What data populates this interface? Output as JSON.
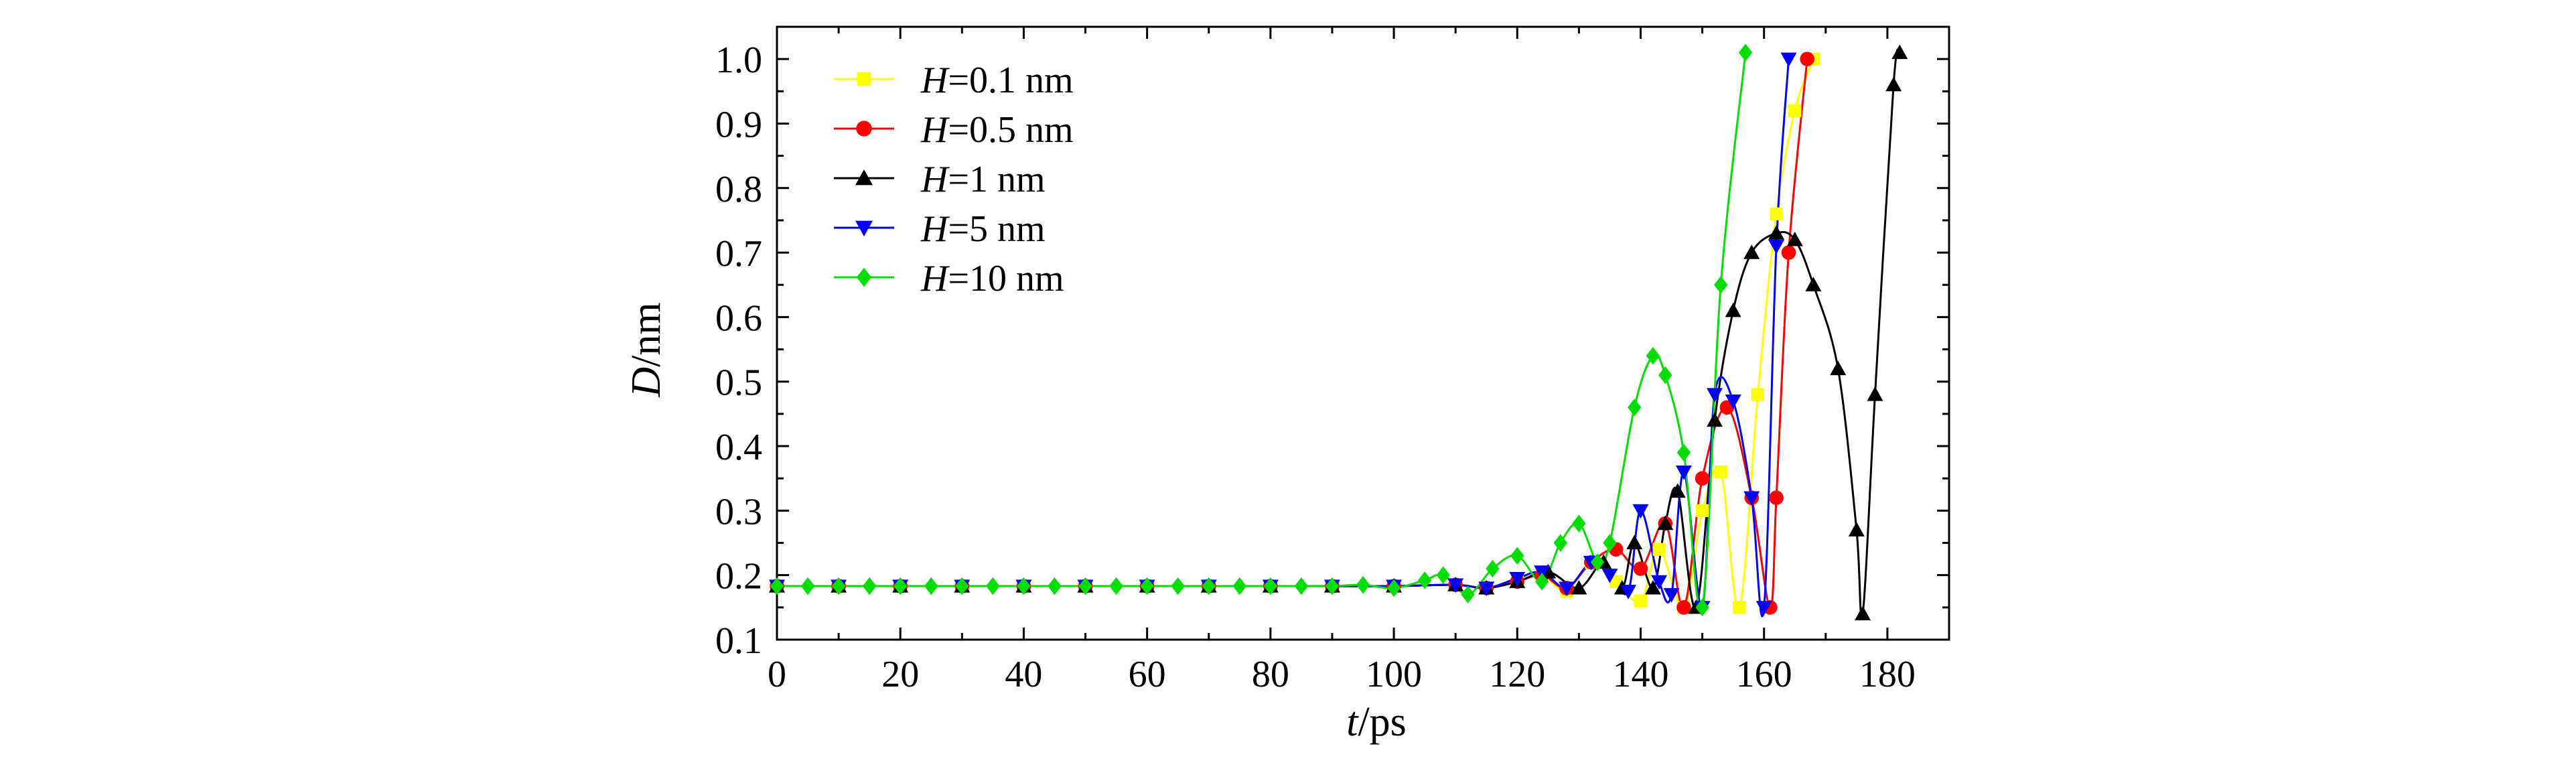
{
  "chart_data": {
    "type": "line",
    "xlabel": {
      "var": "t",
      "unit": "/ps"
    },
    "ylabel": {
      "var": "D",
      "unit": "/nm"
    },
    "xlim": [
      0,
      190
    ],
    "ylim": [
      0.1,
      1.05
    ],
    "x_ticks": [
      0,
      20,
      40,
      60,
      80,
      100,
      120,
      140,
      160,
      180
    ],
    "x_tick_labels": [
      "0",
      "20",
      "40",
      "60",
      "80",
      "100",
      "120",
      "140",
      "160",
      "180"
    ],
    "y_ticks": [
      0.1,
      0.2,
      0.3,
      0.4,
      0.5,
      0.6,
      0.7,
      0.8,
      0.9,
      1.0
    ],
    "y_tick_labels": [
      "0.1",
      "0.2",
      "0.3",
      "0.4",
      "0.5",
      "0.6",
      "0.7",
      "0.8",
      "0.9",
      "1.0"
    ],
    "grid": false,
    "legend_position": "top-left",
    "series": [
      {
        "name": "H=0.1 nm",
        "label_var": "H",
        "label_rest": "=0.1 nm",
        "color": "#ffff00",
        "marker": "square",
        "points": [
          [
            0,
            0.183
          ],
          [
            10,
            0.183
          ],
          [
            20,
            0.183
          ],
          [
            30,
            0.183
          ],
          [
            40,
            0.183
          ],
          [
            50,
            0.183
          ],
          [
            60,
            0.183
          ],
          [
            70,
            0.183
          ],
          [
            80,
            0.183
          ],
          [
            90,
            0.183
          ],
          [
            100,
            0.183
          ],
          [
            110,
            0.185
          ],
          [
            115,
            0.18
          ],
          [
            120,
            0.19
          ],
          [
            124,
            0.2
          ],
          [
            128,
            0.175
          ],
          [
            132,
            0.22
          ],
          [
            136,
            0.19
          ],
          [
            140,
            0.16
          ],
          [
            143,
            0.24
          ],
          [
            147,
            0.15
          ],
          [
            150,
            0.3
          ],
          [
            153,
            0.36
          ],
          [
            156,
            0.15
          ],
          [
            159,
            0.48
          ],
          [
            162,
            0.76
          ],
          [
            165,
            0.92
          ],
          [
            168,
            1.0
          ]
        ]
      },
      {
        "name": "H=0.5 nm",
        "label_var": "H",
        "label_rest": "=0.5 nm",
        "color": "#ff0000",
        "marker": "circle",
        "points": [
          [
            0,
            0.183
          ],
          [
            10,
            0.183
          ],
          [
            20,
            0.183
          ],
          [
            30,
            0.183
          ],
          [
            40,
            0.183
          ],
          [
            50,
            0.183
          ],
          [
            60,
            0.183
          ],
          [
            70,
            0.183
          ],
          [
            80,
            0.183
          ],
          [
            90,
            0.183
          ],
          [
            100,
            0.183
          ],
          [
            110,
            0.185
          ],
          [
            115,
            0.18
          ],
          [
            120,
            0.19
          ],
          [
            124,
            0.2
          ],
          [
            128,
            0.18
          ],
          [
            132,
            0.22
          ],
          [
            136,
            0.24
          ],
          [
            140,
            0.21
          ],
          [
            144,
            0.28
          ],
          [
            147,
            0.15
          ],
          [
            150,
            0.35
          ],
          [
            154,
            0.46
          ],
          [
            158,
            0.32
          ],
          [
            161,
            0.15
          ],
          [
            162,
            0.32
          ],
          [
            164,
            0.7
          ],
          [
            167,
            1.0
          ]
        ]
      },
      {
        "name": "H=1 nm",
        "label_var": "H",
        "label_rest": "=1 nm",
        "color": "#000000",
        "marker": "triangle-up",
        "points": [
          [
            0,
            0.183
          ],
          [
            10,
            0.183
          ],
          [
            20,
            0.183
          ],
          [
            30,
            0.183
          ],
          [
            40,
            0.183
          ],
          [
            50,
            0.183
          ],
          [
            60,
            0.183
          ],
          [
            70,
            0.183
          ],
          [
            80,
            0.183
          ],
          [
            90,
            0.183
          ],
          [
            100,
            0.183
          ],
          [
            110,
            0.185
          ],
          [
            115,
            0.18
          ],
          [
            120,
            0.19
          ],
          [
            125,
            0.205
          ],
          [
            130,
            0.18
          ],
          [
            134,
            0.22
          ],
          [
            137,
            0.18
          ],
          [
            139,
            0.25
          ],
          [
            142,
            0.18
          ],
          [
            144,
            0.28
          ],
          [
            146,
            0.33
          ],
          [
            149,
            0.15
          ],
          [
            152,
            0.44
          ],
          [
            155,
            0.61
          ],
          [
            158,
            0.7
          ],
          [
            162,
            0.73
          ],
          [
            165,
            0.72
          ],
          [
            168,
            0.65
          ],
          [
            172,
            0.52
          ],
          [
            175,
            0.27
          ],
          [
            176,
            0.14
          ],
          [
            178,
            0.48
          ],
          [
            181,
            0.96
          ],
          [
            182,
            1.01
          ]
        ]
      },
      {
        "name": "H=5 nm",
        "label_var": "H",
        "label_rest": "=5 nm",
        "color": "#0000ff",
        "marker": "triangle-down",
        "points": [
          [
            0,
            0.183
          ],
          [
            10,
            0.183
          ],
          [
            20,
            0.183
          ],
          [
            30,
            0.183
          ],
          [
            40,
            0.183
          ],
          [
            50,
            0.183
          ],
          [
            60,
            0.183
          ],
          [
            70,
            0.183
          ],
          [
            80,
            0.183
          ],
          [
            90,
            0.183
          ],
          [
            100,
            0.183
          ],
          [
            110,
            0.185
          ],
          [
            115,
            0.18
          ],
          [
            120,
            0.195
          ],
          [
            124,
            0.205
          ],
          [
            128,
            0.18
          ],
          [
            132,
            0.22
          ],
          [
            135,
            0.2
          ],
          [
            138,
            0.175
          ],
          [
            140,
            0.3
          ],
          [
            143,
            0.19
          ],
          [
            145,
            0.17
          ],
          [
            147,
            0.36
          ],
          [
            150,
            0.15
          ],
          [
            152,
            0.48
          ],
          [
            155,
            0.47
          ],
          [
            158,
            0.32
          ],
          [
            160,
            0.15
          ],
          [
            162,
            0.71
          ],
          [
            164,
            1.0
          ]
        ]
      },
      {
        "name": "H=10 nm",
        "label_var": "H",
        "label_rest": "=10 nm",
        "color": "#00dd00",
        "marker": "diamond",
        "points": [
          [
            0,
            0.183
          ],
          [
            5,
            0.183
          ],
          [
            10,
            0.183
          ],
          [
            15,
            0.183
          ],
          [
            20,
            0.183
          ],
          [
            25,
            0.183
          ],
          [
            30,
            0.183
          ],
          [
            35,
            0.183
          ],
          [
            40,
            0.183
          ],
          [
            45,
            0.183
          ],
          [
            50,
            0.183
          ],
          [
            55,
            0.183
          ],
          [
            60,
            0.183
          ],
          [
            65,
            0.183
          ],
          [
            70,
            0.183
          ],
          [
            75,
            0.183
          ],
          [
            80,
            0.183
          ],
          [
            85,
            0.183
          ],
          [
            90,
            0.183
          ],
          [
            95,
            0.185
          ],
          [
            100,
            0.18
          ],
          [
            105,
            0.192
          ],
          [
            108,
            0.2
          ],
          [
            112,
            0.17
          ],
          [
            116,
            0.21
          ],
          [
            120,
            0.23
          ],
          [
            124,
            0.19
          ],
          [
            127,
            0.25
          ],
          [
            130,
            0.28
          ],
          [
            133,
            0.22
          ],
          [
            135,
            0.25
          ],
          [
            139,
            0.46
          ],
          [
            142,
            0.54
          ],
          [
            144,
            0.51
          ],
          [
            147,
            0.39
          ],
          [
            150,
            0.15
          ],
          [
            153,
            0.65
          ],
          [
            157,
            1.01
          ]
        ]
      }
    ]
  }
}
